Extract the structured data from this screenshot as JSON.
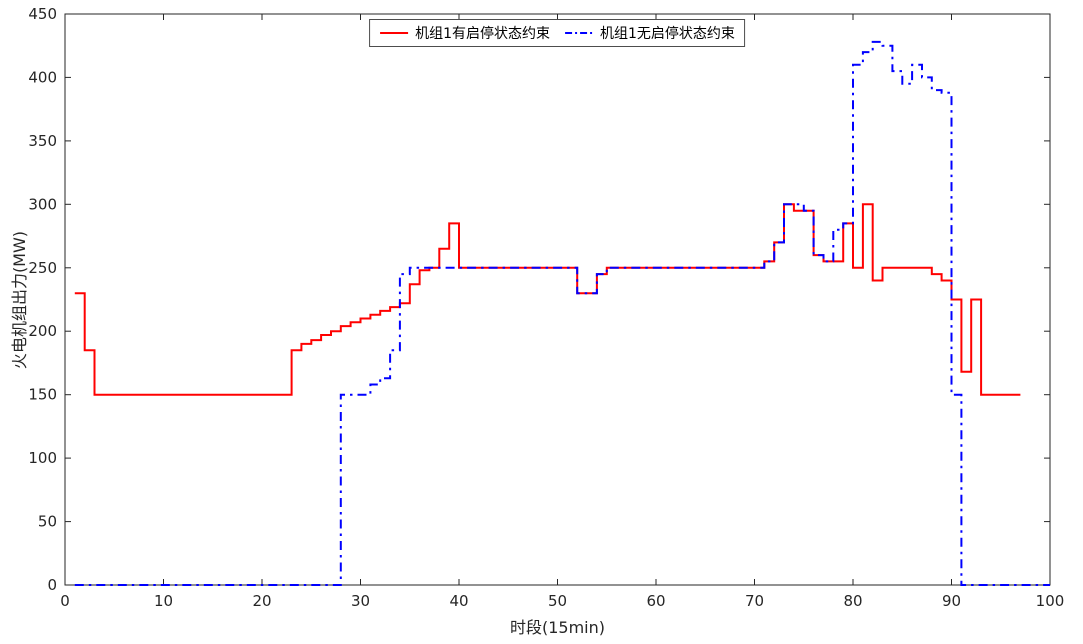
{
  "figure": {
    "background": "#ffffff",
    "axis_color": "#262626"
  },
  "chart_data": {
    "type": "line",
    "subtype": "stairs",
    "title": "",
    "xlabel": "时段(15min)",
    "ylabel": "火电机组出力(MW)",
    "xlim": [
      0,
      100
    ],
    "ylim": [
      0,
      450
    ],
    "xticks": [
      0,
      10,
      20,
      30,
      40,
      50,
      60,
      70,
      80,
      90,
      100
    ],
    "yticks": [
      0,
      50,
      100,
      150,
      200,
      250,
      300,
      350,
      400,
      450
    ],
    "grid": false,
    "legend_position": "top-center",
    "x_start": 1,
    "series": [
      {
        "name": "机组1有启停状态约束",
        "color": "#ff0000",
        "style": "solid",
        "x_end": 97,
        "values": [
          230,
          185,
          150,
          150,
          150,
          150,
          150,
          150,
          150,
          150,
          150,
          150,
          150,
          150,
          150,
          150,
          150,
          150,
          150,
          150,
          150,
          150,
          185,
          190,
          193,
          197,
          200,
          204,
          207,
          210,
          213,
          216,
          219,
          222,
          237,
          248,
          250,
          265,
          285,
          250,
          250,
          250,
          250,
          250,
          250,
          250,
          250,
          250,
          250,
          250,
          250,
          230,
          230,
          245,
          250,
          250,
          250,
          250,
          250,
          250,
          250,
          250,
          250,
          250,
          250,
          250,
          250,
          250,
          250,
          250,
          255,
          270,
          300,
          295,
          295,
          260,
          255,
          255,
          285,
          250,
          300,
          240,
          250,
          250,
          250,
          250,
          250,
          245,
          240,
          225,
          168,
          225,
          150,
          150,
          150,
          150
        ]
      },
      {
        "name": "机组1无启停状态约束",
        "color": "#0000ff",
        "style": "dash-dot",
        "x_end": 100,
        "values": [
          0,
          0,
          0,
          0,
          0,
          0,
          0,
          0,
          0,
          0,
          0,
          0,
          0,
          0,
          0,
          0,
          0,
          0,
          0,
          0,
          0,
          0,
          0,
          0,
          0,
          0,
          0,
          150,
          150,
          150,
          158,
          163,
          185,
          245,
          250,
          250,
          250,
          250,
          250,
          250,
          250,
          250,
          250,
          250,
          250,
          250,
          250,
          250,
          250,
          250,
          250,
          230,
          230,
          245,
          250,
          250,
          250,
          250,
          250,
          250,
          250,
          250,
          250,
          250,
          250,
          250,
          250,
          250,
          250,
          250,
          255,
          270,
          300,
          300,
          295,
          260,
          255,
          280,
          285,
          410,
          420,
          428,
          425,
          405,
          395,
          410,
          400,
          390,
          388,
          150,
          0,
          0,
          0,
          0,
          0,
          0
        ]
      }
    ]
  }
}
